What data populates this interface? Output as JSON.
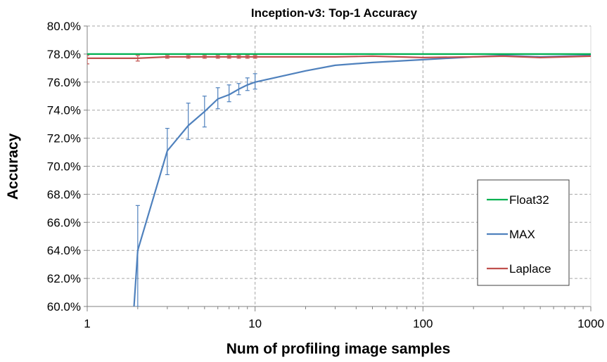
{
  "chart_data": {
    "type": "line",
    "title": "Inception-v3: Top-1 Accuracy",
    "xlabel": "Num of profiling image samples",
    "ylabel": "Accuracy",
    "x_scale": "log",
    "xlim": [
      1,
      1000
    ],
    "ylim": [
      60.0,
      80.0
    ],
    "x_ticks": [
      1,
      10,
      100,
      1000
    ],
    "x_tick_labels": [
      "1",
      "10",
      "100",
      "1000"
    ],
    "y_ticks": [
      60,
      62,
      64,
      66,
      68,
      70,
      72,
      74,
      76,
      78,
      80
    ],
    "y_tick_labels": [
      "60.0%",
      "62.0%",
      "64.0%",
      "66.0%",
      "68.0%",
      "70.0%",
      "72.0%",
      "74.0%",
      "76.0%",
      "78.0%",
      "80.0%"
    ],
    "grid": "dashed",
    "legend_position": "bottom-right",
    "series": [
      {
        "name": "Float32",
        "color": "#00b050",
        "x": [
          1,
          1000
        ],
        "y": [
          78.0,
          78.0
        ]
      },
      {
        "name": "MAX",
        "color": "#4f81bd",
        "x": [
          1.9,
          2,
          3,
          4,
          5,
          6,
          7,
          8,
          9,
          10,
          20,
          30,
          50,
          100,
          200,
          300,
          500,
          1000
        ],
        "y": [
          60.0,
          64.0,
          71.1,
          72.9,
          73.9,
          74.8,
          75.1,
          75.5,
          75.8,
          76.0,
          76.8,
          77.2,
          77.4,
          77.6,
          77.8,
          77.9,
          77.8,
          77.9
        ],
        "error_low": [
          null,
          60.0,
          69.4,
          71.9,
          72.8,
          74.1,
          74.6,
          75.1,
          75.4,
          75.5,
          null,
          null,
          null,
          null,
          null,
          null,
          null,
          null
        ],
        "error_high": [
          null,
          67.2,
          72.7,
          74.5,
          75.0,
          75.6,
          75.8,
          75.9,
          76.3,
          76.6,
          null,
          null,
          null,
          null,
          null,
          null,
          null,
          null
        ]
      },
      {
        "name": "Laplace",
        "color": "#c0504d",
        "x": [
          1,
          2,
          3,
          4,
          5,
          6,
          7,
          8,
          9,
          10,
          20,
          30,
          50,
          100,
          200,
          300,
          500,
          1000
        ],
        "y": [
          77.7,
          77.7,
          77.8,
          77.8,
          77.8,
          77.8,
          77.8,
          77.8,
          77.8,
          77.8,
          77.8,
          77.8,
          77.85,
          77.75,
          77.8,
          77.85,
          77.75,
          77.85
        ],
        "error_low": [
          77.3,
          77.5,
          77.7,
          77.7,
          77.7,
          77.7,
          77.7,
          77.7,
          77.7,
          77.7,
          null,
          null,
          null,
          null,
          null,
          null,
          null,
          null
        ],
        "error_high": [
          77.9,
          77.9,
          77.9,
          77.9,
          77.9,
          77.9,
          77.9,
          77.9,
          77.9,
          77.9,
          null,
          null,
          null,
          null,
          null,
          null,
          null,
          null
        ]
      }
    ]
  }
}
